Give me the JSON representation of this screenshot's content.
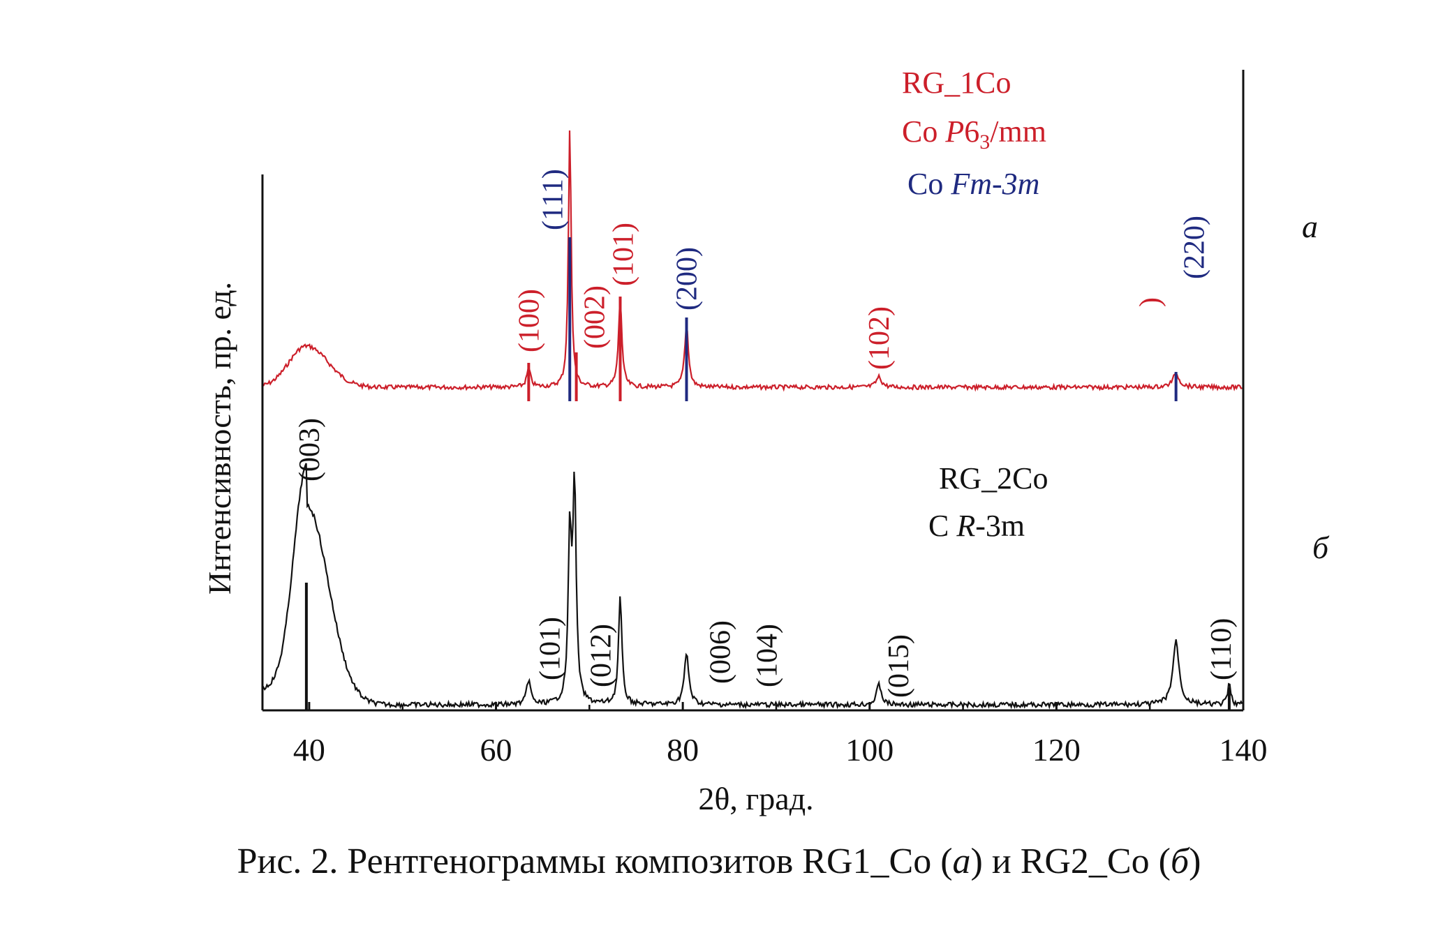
{
  "caption": {
    "prefix": "Рис. 2. Рентгенограммы композитов RG1_Co (",
    "a": "а",
    "mid": ") и RG2_Co (",
    "b": "б",
    "suffix": ")"
  },
  "colors": {
    "red": "#cc1f2a",
    "blue": "#1f2a80",
    "black": "#111111"
  },
  "chart_data": {
    "type": "line",
    "xlabel": "2θ, град.",
    "ylabel": "Интенсивность, пр. ед.",
    "xlim": [
      35,
      140
    ],
    "xticks": [
      40,
      60,
      80,
      100,
      120,
      140
    ],
    "panel_labels": [
      "а",
      "б"
    ],
    "series": [
      {
        "name": "RG_1Co",
        "panel": "а",
        "color": "#cc1f2a",
        "legend": [
          "RG_1Co",
          "Co P6₃/mm",
          "Co Fm-3m"
        ],
        "baseline": 0.0,
        "halo": {
          "center": 39.7,
          "height": 0.16,
          "width": 2.2
        },
        "peaks": [
          {
            "x": 63.5,
            "h": 0.07,
            "w": 0.25
          },
          {
            "x": 67.9,
            "h": 1.0,
            "w": 0.18
          },
          {
            "x": 73.3,
            "h": 0.34,
            "w": 0.22
          },
          {
            "x": 80.4,
            "h": 0.24,
            "w": 0.25
          },
          {
            "x": 101.0,
            "h": 0.04,
            "w": 0.35
          },
          {
            "x": 132.8,
            "h": 0.05,
            "w": 0.45
          }
        ],
        "reflections": [
          {
            "hkl": "(100)",
            "x": 63.5,
            "phase": "hcp"
          },
          {
            "hkl": "(111)",
            "x": 68.0,
            "phase": "fcc"
          },
          {
            "hkl": "(002)",
            "x": 68.6,
            "phase": "hcp"
          },
          {
            "hkl": "(101)",
            "x": 73.3,
            "phase": "hcp"
          },
          {
            "hkl": "(200)",
            "x": 80.4,
            "phase": "fcc"
          },
          {
            "hkl": "(102)",
            "x": 101.0,
            "phase": "hcp"
          },
          {
            "hkl": ")",
            "x": 130.0,
            "phase": "hcp"
          },
          {
            "hkl": "(220)",
            "x": 132.8,
            "phase": "fcc"
          }
        ]
      },
      {
        "name": "RG_2Co",
        "panel": "б",
        "color": "#111111",
        "legend": [
          "RG_2Co",
          "C R-3m"
        ],
        "baseline": 0.0,
        "halo": {
          "center": 39.7,
          "height": 0.88,
          "width": 1.6
        },
        "peaks": [
          {
            "x": 63.5,
            "h": 0.11,
            "w": 0.25
          },
          {
            "x": 67.9,
            "h": 0.72,
            "w": 0.2
          },
          {
            "x": 68.4,
            "h": 0.95,
            "w": 0.22
          },
          {
            "x": 73.3,
            "h": 0.47,
            "w": 0.22
          },
          {
            "x": 80.4,
            "h": 0.22,
            "w": 0.3
          },
          {
            "x": 101.0,
            "h": 0.09,
            "w": 0.3
          },
          {
            "x": 132.8,
            "h": 0.28,
            "w": 0.4
          },
          {
            "x": 138.5,
            "h": 0.09,
            "w": 0.2
          }
        ],
        "reflections": [
          {
            "hkl": "(003)",
            "x": 39.7
          },
          {
            "hkl": "(101)",
            "x": 63.5
          },
          {
            "hkl": "(012)",
            "x": 71.2
          },
          {
            "hkl": "(006)",
            "x": 84.0
          },
          {
            "hkl": "(104)",
            "x": 89.0
          },
          {
            "hkl": "(015)",
            "x": 101.0
          },
          {
            "hkl": "(110)",
            "x": 138.5
          }
        ]
      }
    ],
    "legend_placement": "inside-top-right",
    "grid": false
  }
}
